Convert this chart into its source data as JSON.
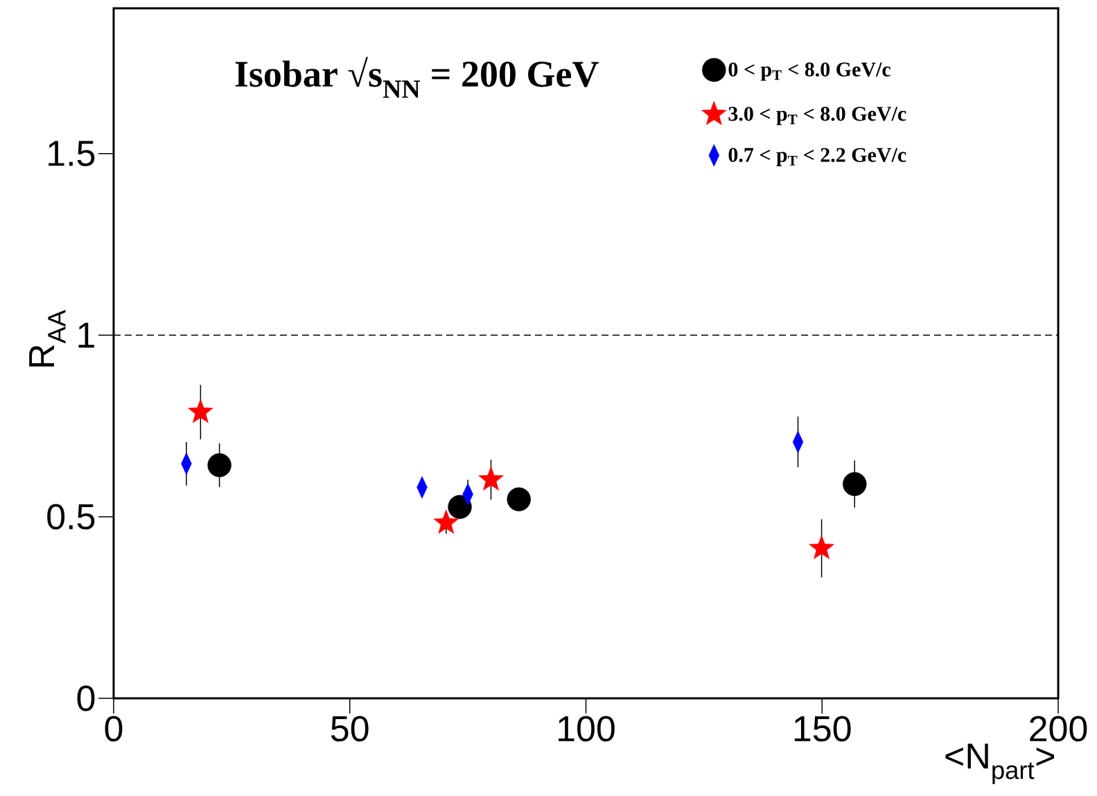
{
  "chart_data": {
    "type": "scatter",
    "title": "Isobar  √s$_{NN}$ = 200 GeV",
    "xlabel": "<N$_{part}$>",
    "ylabel": "R$_{AA}$",
    "xlim": [
      0,
      200
    ],
    "ylim": [
      0,
      1.9
    ],
    "xticks": [
      0,
      50,
      100,
      150,
      200
    ],
    "yticks": [
      0,
      0.5,
      1,
      1.5
    ],
    "legend": "top right",
    "grid": false,
    "ref_lines": [
      {
        "axis": "y",
        "value": 1,
        "line_style": "dashed",
        "color": "#000000"
      }
    ],
    "series": [
      {
        "name": "0 < p$_{T}$ < 8.0 GeV/c",
        "color": "#000000",
        "marker": "circle",
        "x": [
          22.4,
          73.3,
          85.8,
          156.9
        ],
        "values": [
          0.642,
          0.527,
          0.548,
          0.59
        ],
        "errors": [
          0.06,
          0.03,
          0.03,
          0.065
        ]
      },
      {
        "name": "3.0 < p$_{T}$ < 8.0 GeV/c",
        "color": "#ff0000",
        "marker": "star",
        "x": [
          18.4,
          70.4,
          79.9,
          149.9
        ],
        "values": [
          0.788,
          0.483,
          0.602,
          0.413
        ],
        "errors": [
          0.075,
          0.03,
          0.055,
          0.08
        ]
      },
      {
        "name": "0.7 < p$_{T}$ < 2.2 GeV/c",
        "color": "#0000ff",
        "marker": "diamond",
        "x": [
          15.4,
          65.3,
          75.0,
          144.9
        ],
        "values": [
          0.646,
          0.581,
          0.562,
          0.706
        ],
        "errors": [
          0.06,
          null,
          0.04,
          0.07
        ]
      }
    ]
  }
}
